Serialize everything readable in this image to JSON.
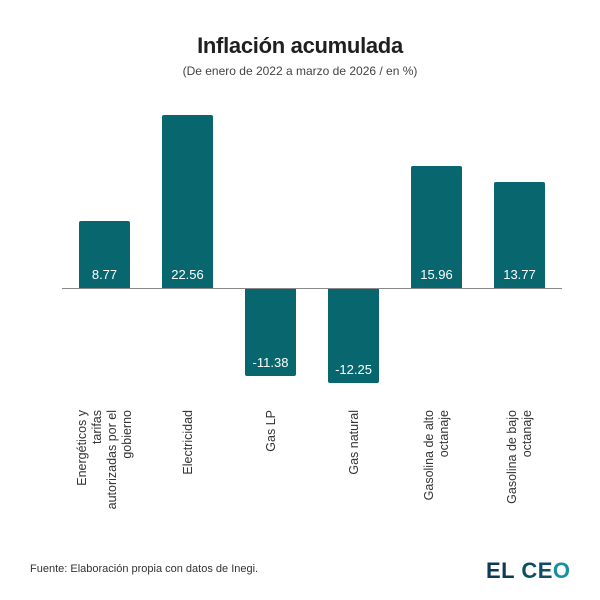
{
  "header": {
    "title": "Inflación acumulada",
    "subtitle": "(De enero de 2022 a marzo de 2026 / en %)"
  },
  "footer": {
    "source": "Fuente: Elaboración propia con datos de Inegi.",
    "logo": {
      "part1": "EL",
      "part2_c": "C",
      "part2_e": "E",
      "part2_o": "O"
    }
  },
  "colors": {
    "bar": "#08666e",
    "baseline": "#888888",
    "logo_dark": "#0e3a55",
    "logo_accent": "#1a8fa0"
  },
  "chart_data": {
    "type": "bar",
    "title": "Inflación acumulada",
    "subtitle": "(De enero de 2022 a marzo de 2026 / en %)",
    "xlabel": "",
    "ylabel": "",
    "categories": [
      "Energéticos y tarifas autorizadas por el gobierno",
      "Electricidad",
      "Gas LP",
      "Gas natural",
      "Gasolina de alto octanaje",
      "Gasolina de bajo octanaje"
    ],
    "category_lines": [
      [
        "Energéticos y",
        "tarifas",
        "autorizadas por el",
        "gobierno"
      ],
      [
        "Electricidad"
      ],
      [
        "Gas LP"
      ],
      [
        "Gas natural"
      ],
      [
        "Gasolina de alto",
        "octanaje"
      ],
      [
        "Gasolina de bajo",
        "octanaje"
      ]
    ],
    "values": [
      8.77,
      22.56,
      -11.38,
      -12.25,
      15.96,
      13.77
    ],
    "value_labels": [
      "8.77",
      "22.56",
      "-11.38",
      "-12.25",
      "15.96",
      "13.77"
    ],
    "grid": false,
    "legend": null,
    "data_labels": true,
    "source": "Fuente: Elaboración propia con datos de Inegi."
  }
}
